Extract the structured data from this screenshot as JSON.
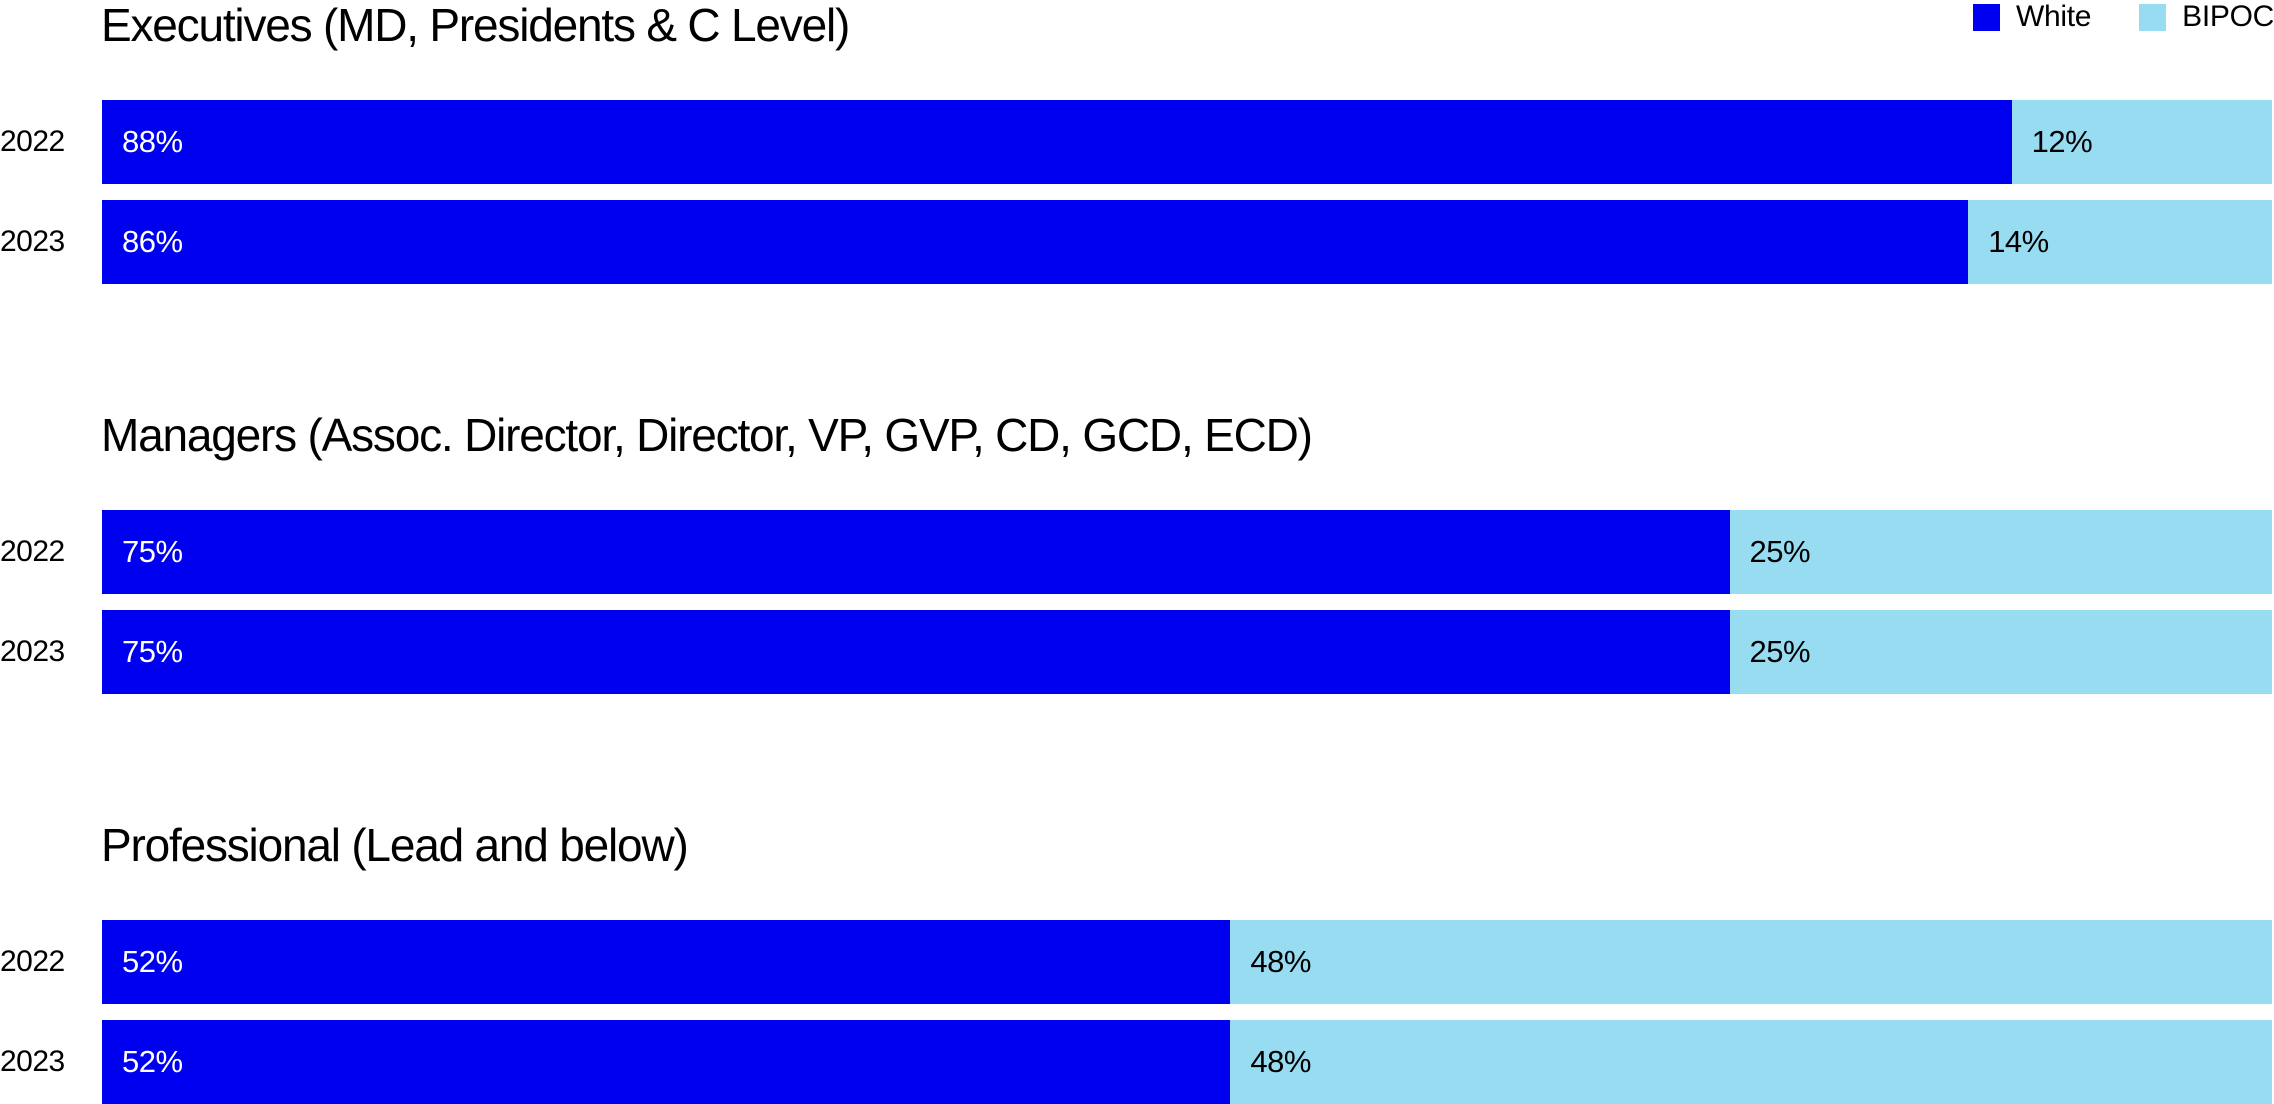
{
  "legend": [
    {
      "label": "White",
      "color": "#0000f0"
    },
    {
      "label": "BIPOC",
      "color": "#98dcf2"
    }
  ],
  "chart_data": {
    "type": "bar",
    "orientation": "horizontal",
    "stacked": true,
    "percent": true,
    "series_names": [
      "White",
      "BIPOC"
    ],
    "colors": {
      "White": "#0000f0",
      "BIPOC": "#98dcf2"
    },
    "groups": [
      {
        "title": "Executives (MD, Presidents & C Level)",
        "rows": [
          {
            "year": "2022",
            "white": 88,
            "bipoc": 12,
            "white_label": "88%",
            "bipoc_label": "12%"
          },
          {
            "year": "2023",
            "white": 86,
            "bipoc": 14,
            "white_label": "86%",
            "bipoc_label": "14%"
          }
        ]
      },
      {
        "title": "Managers (Assoc. Director, Director, VP, GVP, CD, GCD, ECD)",
        "rows": [
          {
            "year": "2022",
            "white": 75,
            "bipoc": 25,
            "white_label": "75%",
            "bipoc_label": "25%"
          },
          {
            "year": "2023",
            "white": 75,
            "bipoc": 25,
            "white_label": "75%",
            "bipoc_label": "25%"
          }
        ]
      },
      {
        "title": "Professional (Lead and below)",
        "rows": [
          {
            "year": "2022",
            "white": 52,
            "bipoc": 48,
            "white_label": "52%",
            "bipoc_label": "48%"
          },
          {
            "year": "2023",
            "white": 52,
            "bipoc": 48,
            "white_label": "52%",
            "bipoc_label": "48%"
          }
        ]
      }
    ],
    "legend_position": "top-right",
    "grid": false
  }
}
